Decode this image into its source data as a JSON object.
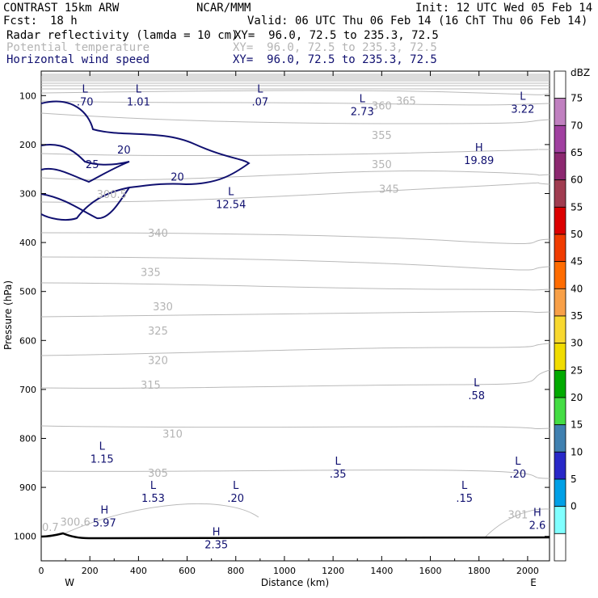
{
  "header": {
    "model": "CONTRAST 15km ARW",
    "center": "NCAR/MMM",
    "init": "Init: 12 UTC Wed 05 Feb 14",
    "fcst_label": "Fcst:",
    "fcst_value": "18 h",
    "valid": "Valid: 06 UTC Thu 06 Feb 14 (16 ChT Thu 06 Feb 14)",
    "fields": [
      {
        "name": "Radar reflectivity (lamda = 10 cm)",
        "xy": "XY=  96.0, 72.5 to 235.3, 72.5",
        "color": "#000000"
      },
      {
        "name": "Potential temperature",
        "xy": "XY=  96.0, 72.5 to 235.3, 72.5",
        "color": "#b4b4b4"
      },
      {
        "name": "Horizontal wind speed",
        "xy": "XY=  96.0, 72.5 to 235.3, 72.5",
        "color": "#101070"
      }
    ]
  },
  "chart_data": {
    "type": "cross-section",
    "xlabel": "Distance (km)",
    "ylabel": "Pressure (hPa)",
    "xlim": [
      0,
      2090
    ],
    "ylim_pressure": [
      50,
      1050
    ],
    "x_ticks": [
      "0",
      "200",
      "400",
      "600",
      "800",
      "1000",
      "1200",
      "1400",
      "1600",
      "1800",
      "2000"
    ],
    "y_ticks": [
      "100",
      "200",
      "300",
      "400",
      "500",
      "600",
      "700",
      "800",
      "900",
      "1000"
    ],
    "x_end_labels": [
      "W",
      "E"
    ],
    "colorbar": {
      "unit": "dBZ",
      "levels": [
        "75",
        "70",
        "65",
        "60",
        "55",
        "50",
        "45",
        "40",
        "35",
        "30",
        "25",
        "20",
        "15",
        "10",
        "5",
        "0"
      ],
      "colors": [
        "#ffffff",
        "#c080c0",
        "#a040a0",
        "#8c2870",
        "#a03c50",
        "#dc0000",
        "#f03c00",
        "#ff6c00",
        "#f8a048",
        "#f8d830",
        "#f0dc00",
        "#00aa00",
        "#44dd44",
        "#4080b0",
        "#2828c8",
        "#00a0e6",
        "#80ffff",
        "#ffffff"
      ]
    },
    "theta_isentropes": [
      {
        "label": "300.5",
        "pos": [
          290,
          300.5
        ]
      },
      {
        "label": "300.6",
        "pos": [
          140,
          970
        ]
      },
      {
        "label": "301",
        "pos": [
          1960,
          955
        ]
      },
      {
        "label": "305",
        "pos": [
          480,
          870
        ]
      },
      {
        "label": "310",
        "pos": [
          540,
          790
        ]
      },
      {
        "label": "315",
        "pos": [
          450,
          690
        ]
      },
      {
        "label": "320",
        "pos": [
          480,
          640
        ]
      },
      {
        "label": "325",
        "pos": [
          480,
          580
        ]
      },
      {
        "label": "330",
        "pos": [
          500,
          530
        ]
      },
      {
        "label": "335",
        "pos": [
          450,
          460
        ]
      },
      {
        "label": "340",
        "pos": [
          480,
          380
        ]
      },
      {
        "label": "345",
        "pos": [
          1430,
          290
        ]
      },
      {
        "label": "350",
        "pos": [
          1400,
          240
        ]
      },
      {
        "label": "355",
        "pos": [
          1400,
          180
        ]
      },
      {
        "label": "360",
        "pos": [
          1400,
          120
        ]
      },
      {
        "label": "365",
        "pos": [
          1500,
          110
        ]
      }
    ],
    "wind_contours": [
      {
        "label": "20",
        "pos": [
          560,
          265
        ]
      },
      {
        "label": "20",
        "pos": [
          340,
          210
        ]
      },
      {
        "label": "25",
        "pos": [
          210,
          240
        ]
      }
    ],
    "extrema": [
      {
        "type": "L",
        "value": ".70",
        "x": 180,
        "p": 100
      },
      {
        "type": "L",
        "value": "1.01",
        "x": 400,
        "p": 100
      },
      {
        "type": "L",
        "value": ".07",
        "x": 900,
        "p": 100
      },
      {
        "type": "L",
        "value": "2.73",
        "x": 1320,
        "p": 120
      },
      {
        "type": "L",
        "value": "3.22",
        "x": 1980,
        "p": 115
      },
      {
        "type": "H",
        "value": "19.89",
        "x": 1800,
        "p": 220
      },
      {
        "type": "L",
        "value": "12.54",
        "x": 780,
        "p": 310
      },
      {
        "type": "L",
        "value": ".58",
        "x": 1790,
        "p": 700
      },
      {
        "type": "L",
        "value": "1.15",
        "x": 250,
        "p": 830
      },
      {
        "type": "L",
        "value": ".35",
        "x": 1220,
        "p": 860
      },
      {
        "type": "L",
        "value": ".20",
        "x": 1960,
        "p": 860
      },
      {
        "type": "L",
        "value": "1.53",
        "x": 460,
        "p": 910
      },
      {
        "type": "L",
        "value": ".20",
        "x": 800,
        "p": 910
      },
      {
        "type": "L",
        "value": ".15",
        "x": 1740,
        "p": 910
      },
      {
        "type": "H",
        "value": "5.97",
        "x": 260,
        "p": 960
      },
      {
        "type": "H",
        "value": "2.35",
        "x": 720,
        "p": 1005
      },
      {
        "type": "H",
        "value": "2.6",
        "x": 2040,
        "p": 965
      }
    ],
    "corner_label": "0.7"
  }
}
